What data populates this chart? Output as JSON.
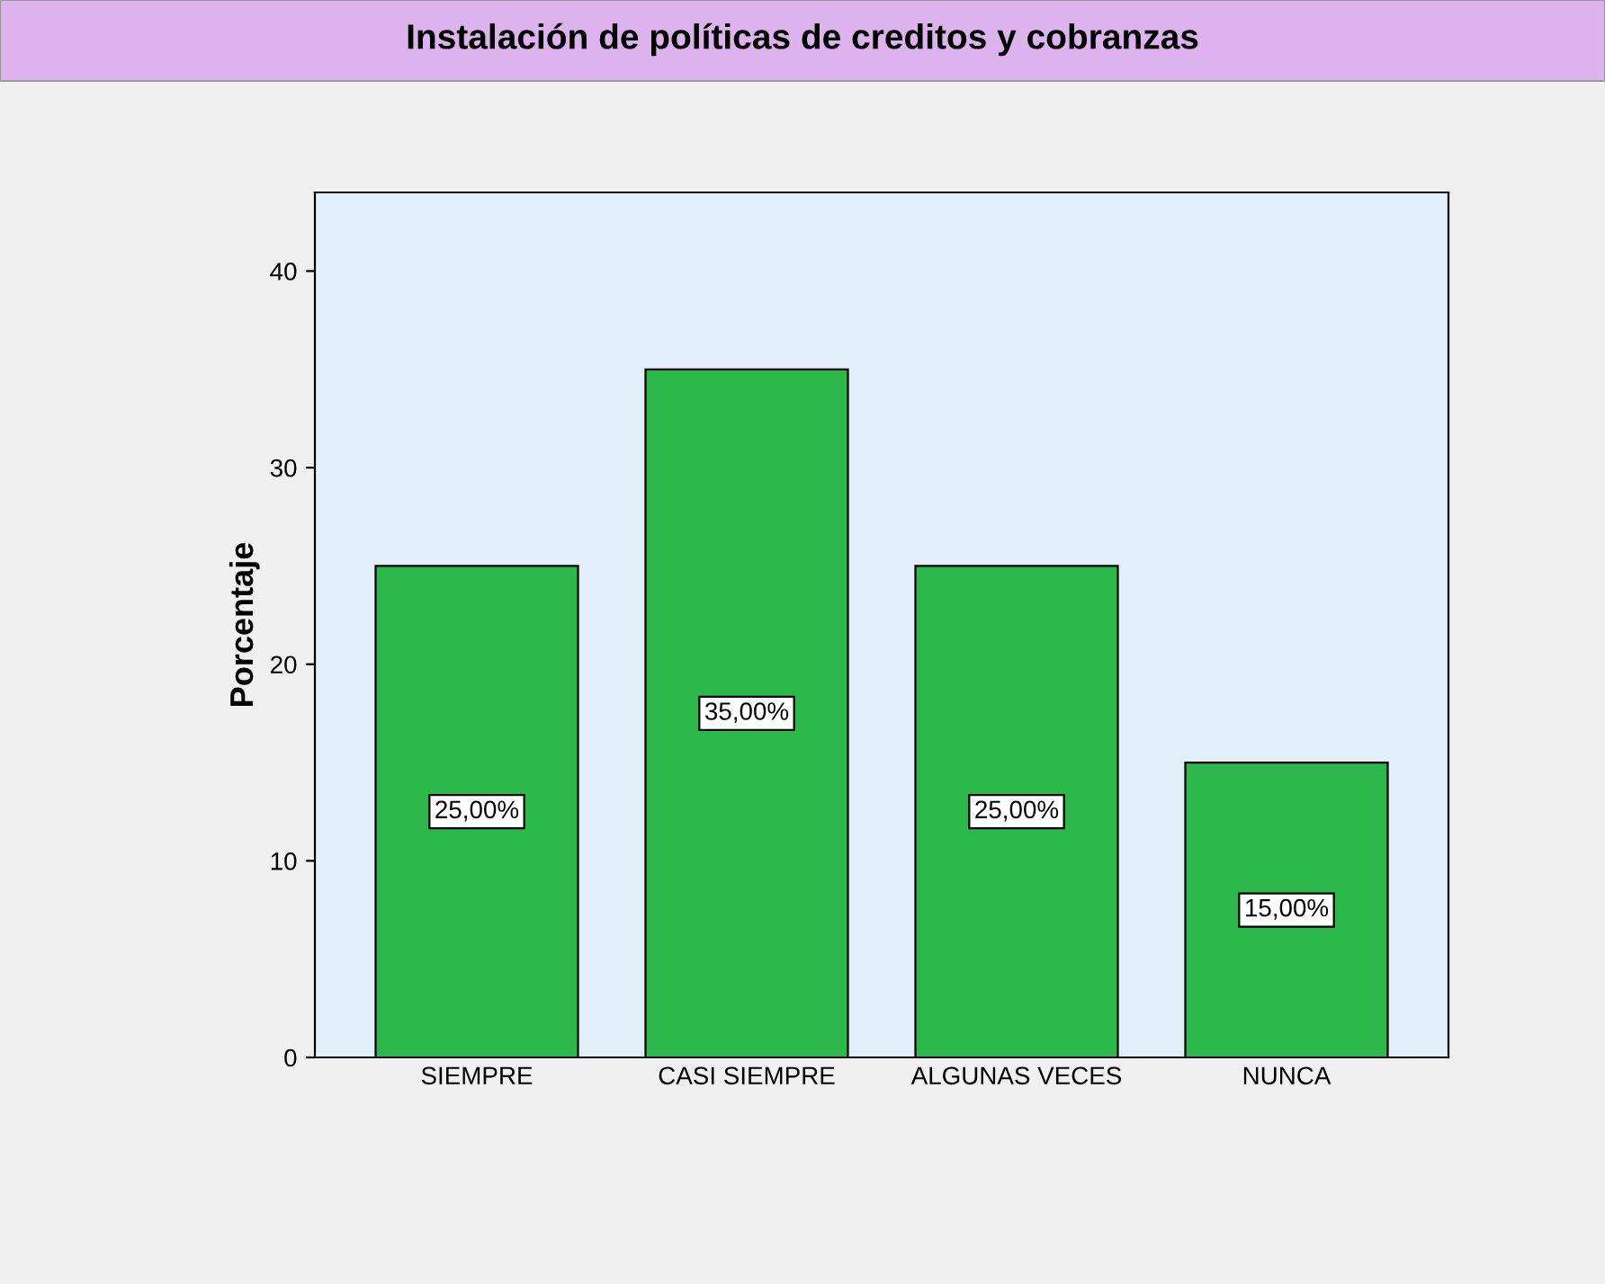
{
  "chart_data": {
    "type": "bar",
    "title": "Instalación de políticas de creditos y cobranzas",
    "ylabel": "Porcentaje",
    "categories": [
      "SIEMPRE",
      "CASI SIEMPRE",
      "ALGUNAS VECES",
      "NUNCA"
    ],
    "values": [
      25,
      35,
      25,
      15
    ],
    "value_labels": [
      "25,00%",
      "35,00%",
      "25,00%",
      "15,00%"
    ],
    "color": "#2db84b",
    "ylim": [
      0,
      44
    ],
    "yticks": [
      0,
      10,
      20,
      30,
      40
    ],
    "grid": false,
    "legend": false
  }
}
